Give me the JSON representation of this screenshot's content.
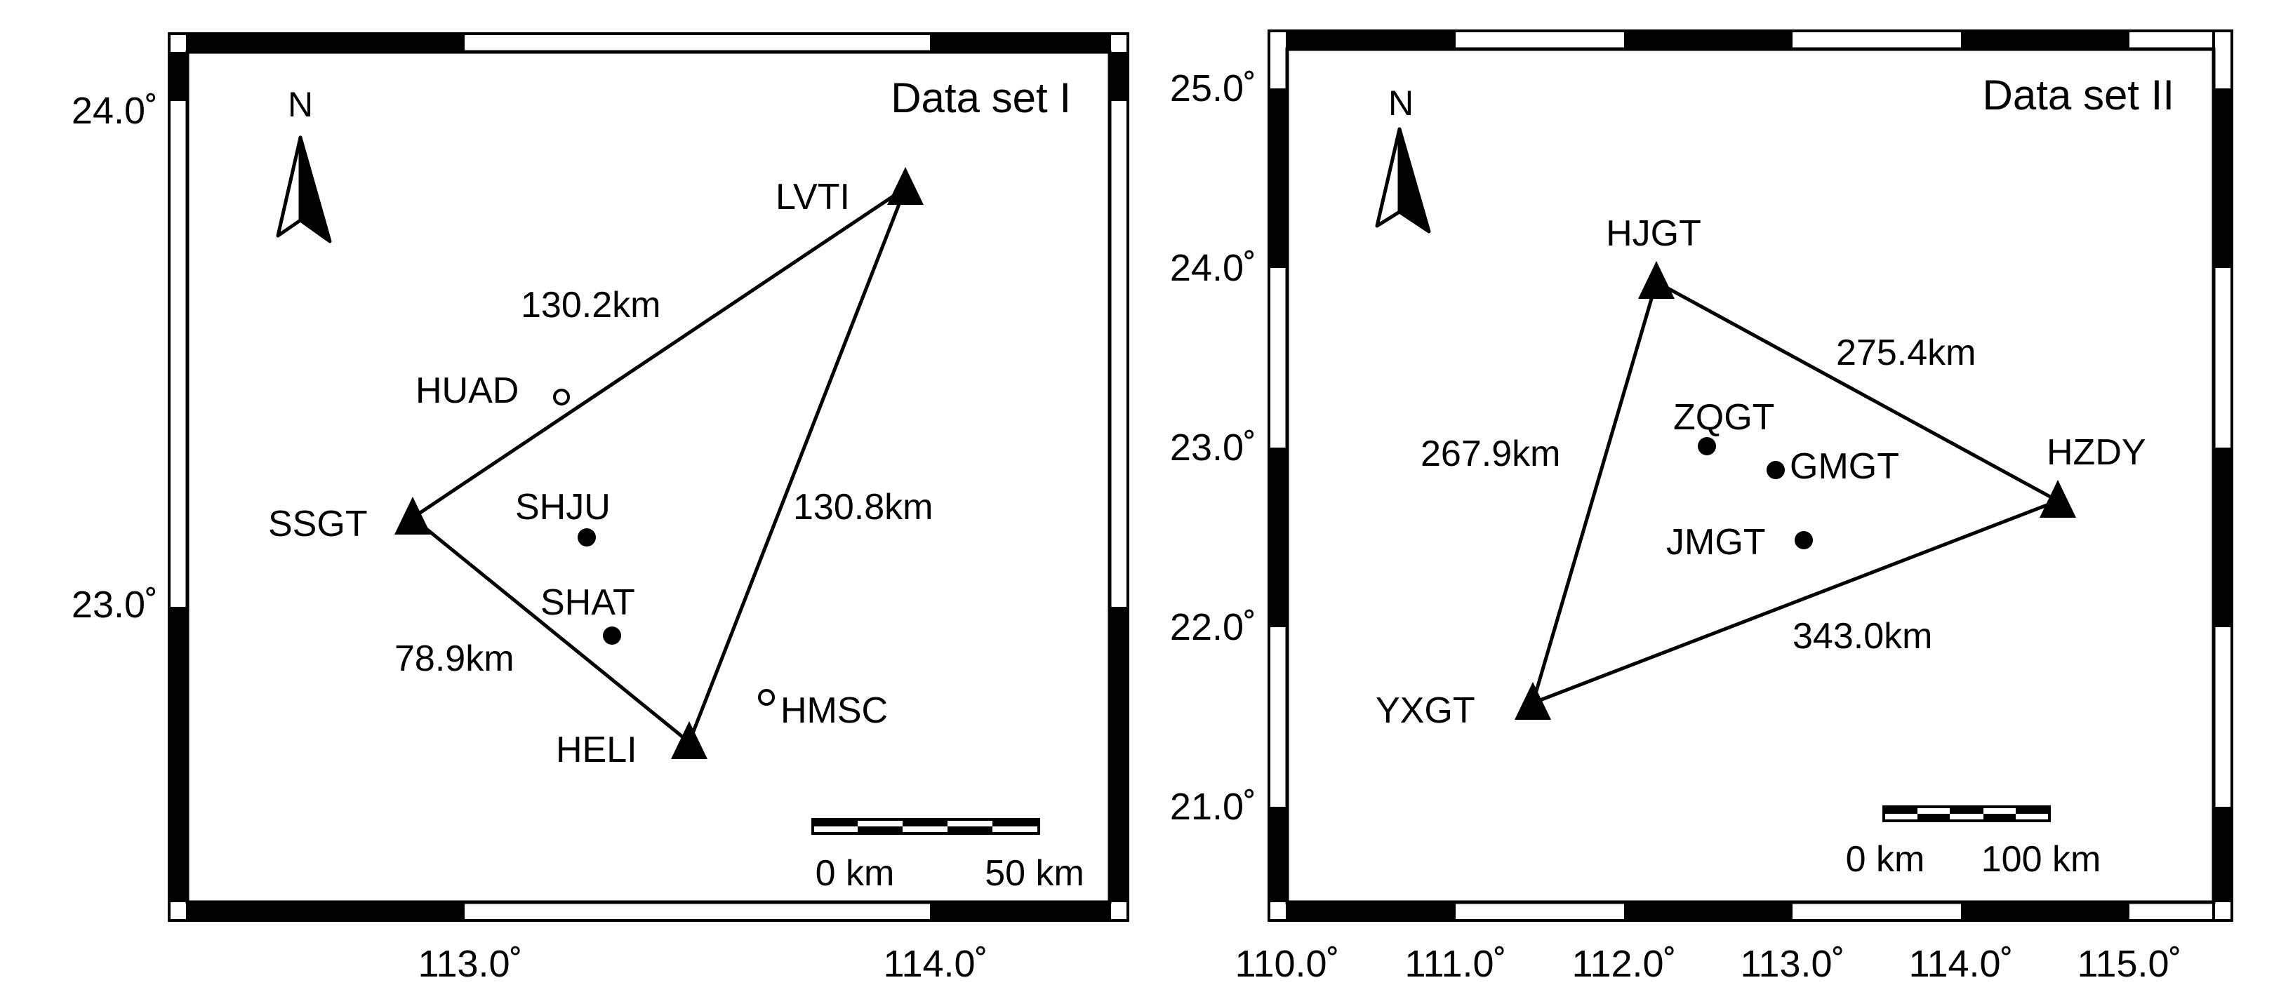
{
  "maps": [
    {
      "title": "Data set I",
      "north_label": "N",
      "lon_ticks": [
        {
          "value": 113.0,
          "label": "113.0˚"
        },
        {
          "value": 114.0,
          "label": "114.0˚"
        }
      ],
      "lat_ticks": [
        {
          "value": 24.0,
          "label": "24.0˚"
        },
        {
          "value": 23.0,
          "label": "23.0˚"
        }
      ],
      "stations": [
        {
          "name": "LVTI",
          "type": "triangle"
        },
        {
          "name": "SSGT",
          "type": "triangle"
        },
        {
          "name": "HELI",
          "type": "triangle"
        },
        {
          "name": "HUAD",
          "type": "open-circle"
        },
        {
          "name": "SHJU",
          "type": "filled-circle"
        },
        {
          "name": "SHAT",
          "type": "filled-circle"
        },
        {
          "name": "HMSC",
          "type": "open-circle"
        }
      ],
      "links": [
        {
          "from": "SSGT",
          "to": "LVTI",
          "distance": "130.2km"
        },
        {
          "from": "LVTI",
          "to": "HELI",
          "distance": "130.8km"
        },
        {
          "from": "SSGT",
          "to": "HELI",
          "distance": "78.9km"
        }
      ],
      "scale_bar": {
        "start_label": "0 km",
        "end_label": "50 km"
      }
    },
    {
      "title": "Data set II",
      "north_label": "N",
      "lon_ticks": [
        {
          "value": 110.0,
          "label": "110.0˚"
        },
        {
          "value": 111.0,
          "label": "111.0˚"
        },
        {
          "value": 112.0,
          "label": "112.0˚"
        },
        {
          "value": 113.0,
          "label": "113.0˚"
        },
        {
          "value": 114.0,
          "label": "114.0˚"
        },
        {
          "value": 115.0,
          "label": "115.0˚"
        }
      ],
      "lat_ticks": [
        {
          "value": 25.0,
          "label": "25.0˚"
        },
        {
          "value": 24.0,
          "label": "24.0˚"
        },
        {
          "value": 23.0,
          "label": "23.0˚"
        },
        {
          "value": 22.0,
          "label": "22.0˚"
        },
        {
          "value": 21.0,
          "label": "21.0˚"
        }
      ],
      "stations": [
        {
          "name": "HJGT",
          "type": "triangle"
        },
        {
          "name": "HZDY",
          "type": "triangle"
        },
        {
          "name": "YXGT",
          "type": "triangle"
        },
        {
          "name": "ZQGT",
          "type": "filled-circle"
        },
        {
          "name": "GMGT",
          "type": "filled-circle"
        },
        {
          "name": "JMGT",
          "type": "filled-circle"
        }
      ],
      "links": [
        {
          "from": "HJGT",
          "to": "HZDY",
          "distance": "275.4km"
        },
        {
          "from": "HJGT",
          "to": "YXGT",
          "distance": "267.9km"
        },
        {
          "from": "YXGT",
          "to": "HZDY",
          "distance": "343.0km"
        }
      ],
      "scale_bar": {
        "start_label": "0 km",
        "end_label": "100 km"
      }
    }
  ]
}
